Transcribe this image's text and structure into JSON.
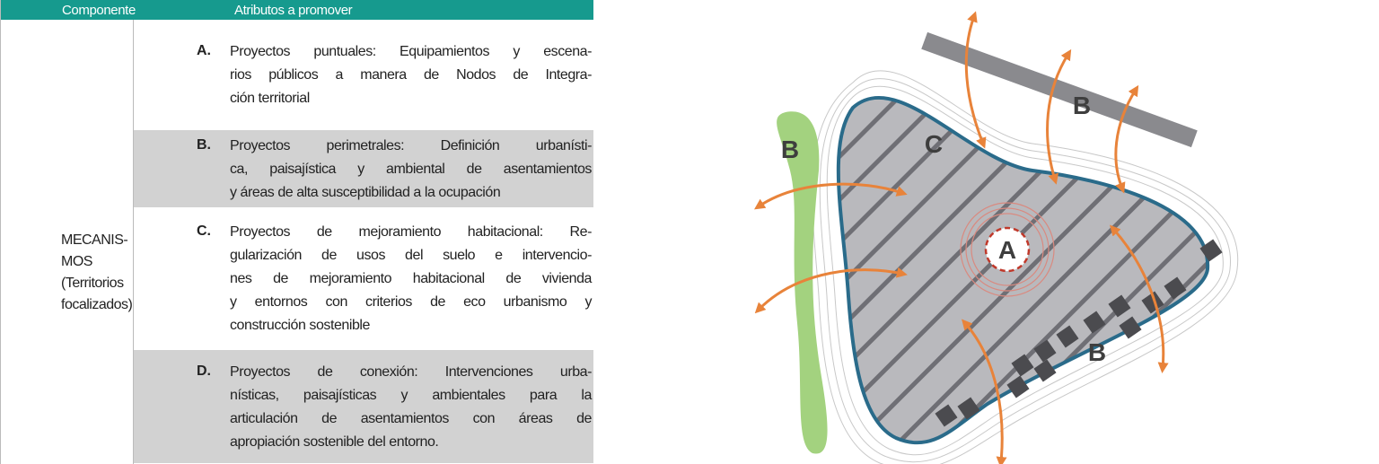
{
  "header": {
    "componente": "Componente",
    "atributos": "Atributos a promover"
  },
  "component": {
    "lines": [
      "MECANIS-",
      "MOS",
      "(Territorios",
      "focalizados)"
    ]
  },
  "rows": [
    {
      "letter": "A.",
      "lines": [
        "Proyectos puntuales: Equipamientos y escena-",
        "rios públicos a manera de Nodos de Integra-",
        "ción territorial"
      ]
    },
    {
      "letter": "B.",
      "lines": [
        "Proyectos perimetrales: Definición urbanísti-",
        "ca, paisajística y ambiental de asentamientos",
        "y áreas de alta susceptibilidad a la ocupación"
      ]
    },
    {
      "letter": "C.",
      "lines": [
        "Proyectos de mejoramiento habitacional: Re-",
        "gularización de usos del suelo e intervencio-",
        "nes de mejoramiento habitacional de vivienda",
        "y entornos con criterios de eco urbanismo y",
        "construcción sostenible"
      ]
    },
    {
      "letter": "D.",
      "lines": [
        "Proyectos de conexión: Intervenciones urba-",
        "nísticas, paisajísticas y ambientales para la",
        "articulación de asentamientos con áreas de",
        "apropiación sostenible del entorno."
      ]
    }
  ],
  "diagram": {
    "labels": [
      "B",
      "C",
      "B",
      "A",
      "B"
    ]
  }
}
